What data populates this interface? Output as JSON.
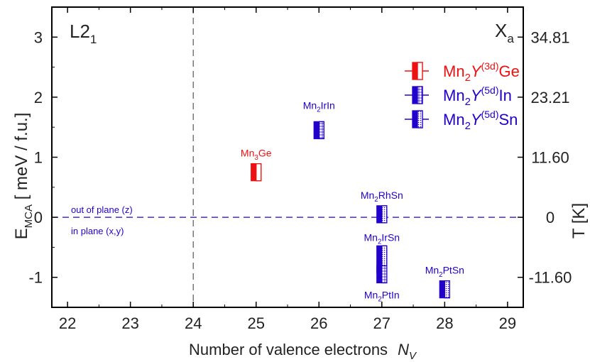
{
  "chart_data": {
    "type": "scatter",
    "title": "",
    "xlabel": "Number of valence electrons",
    "xlabel_symbol": "N",
    "xlabel_symbol_sub": "V",
    "ylabel": "E",
    "ylabel_sub": "MCA",
    "ylabel_unit": " [ meV / f.u.]",
    "y2label": "T [K]",
    "xlim": [
      21.75,
      29.25
    ],
    "ylim": [
      -1.5,
      3.5
    ],
    "xticks": [
      {
        "v": 22,
        "label": "22"
      },
      {
        "v": 23,
        "label": "23"
      },
      {
        "v": 24,
        "label": "24"
      },
      {
        "v": 25,
        "label": "25"
      },
      {
        "v": 26,
        "label": "26"
      },
      {
        "v": 27,
        "label": "27"
      },
      {
        "v": 28,
        "label": "28"
      },
      {
        "v": 29,
        "label": "29"
      }
    ],
    "yticks": [
      {
        "v": -1,
        "label": "-1"
      },
      {
        "v": 0,
        "label": "0"
      },
      {
        "v": 1,
        "label": "1"
      },
      {
        "v": 2,
        "label": "2"
      },
      {
        "v": 3,
        "label": "3"
      }
    ],
    "y2ticks": [
      {
        "v": -1,
        "label": "-11.60"
      },
      {
        "v": 0,
        "label": "0"
      },
      {
        "v": 1,
        "label": "11.60"
      },
      {
        "v": 2,
        "label": "23.21"
      },
      {
        "v": 3,
        "label": "34.81"
      }
    ],
    "vline_x": 24,
    "hline_y": 0,
    "region_labels": {
      "left": {
        "text": "L2",
        "sub": "1"
      },
      "right": {
        "text": "X",
        "sub": "a"
      }
    },
    "boundary_labels": {
      "above": "out of plane (z)",
      "below": "in plane (x,y)"
    },
    "legend": [
      {
        "name": "Mn2Y(3d)Ge",
        "color": "#ee1111",
        "fill": "half-right",
        "parts": {
          "a": "Mn",
          "a_sub": "2",
          "b": "Y",
          "b_sup": "(3d)",
          "c": "Ge"
        }
      },
      {
        "name": "Mn2Y(5d)In",
        "color": "#2200cc",
        "fill": "half-left-textured",
        "parts": {
          "a": "Mn",
          "a_sub": "2",
          "b": "Y",
          "b_sup": "(5d)",
          "c": "In"
        }
      },
      {
        "name": "Mn2Y(5d)Sn",
        "color": "#2200cc",
        "fill": "half-left-dotted",
        "parts": {
          "a": "Mn",
          "a_sub": "2",
          "b": "Y",
          "b_sup": "(5d)",
          "c": "Sn"
        }
      }
    ],
    "series": [
      {
        "name": "Mn3Ge",
        "x": 25,
        "y": 0.75,
        "color": "#ee1111",
        "style": "half-right",
        "label": {
          "a": "Mn",
          "sub": "3",
          "b": "Ge"
        },
        "label_pos": "above"
      },
      {
        "name": "Mn2IrIn",
        "x": 26,
        "y": 1.45,
        "color": "#2200cc",
        "style": "half-left-textured",
        "label": {
          "a": "Mn",
          "sub": "2",
          "b": "IrIn"
        },
        "label_pos": "above"
      },
      {
        "name": "Mn2RhSn",
        "x": 27,
        "y": 0.05,
        "color": "#2200cc",
        "style": "half-left-dotted",
        "label": {
          "a": "Mn",
          "sub": "2",
          "b": "RhSn"
        },
        "label_pos": "above"
      },
      {
        "name": "Mn2IrSn",
        "x": 27,
        "y": -0.7,
        "color": "#2200cc",
        "style": "half-left-dotted",
        "label": {
          "a": "Mn",
          "sub": "2",
          "b": "IrSn"
        },
        "label_pos": "above"
      },
      {
        "name": "Mn2PtIn",
        "x": 27,
        "y": -0.95,
        "color": "#2200cc",
        "style": "half-left-textured",
        "label": {
          "a": "Mn",
          "sub": "2",
          "b": "PtIn"
        },
        "label_pos": "below"
      },
      {
        "name": "Mn2PtSn",
        "x": 28,
        "y": -1.2,
        "color": "#2200cc",
        "style": "half-left-dotted",
        "label": {
          "a": "Mn",
          "sub": "2",
          "b": "PtSn"
        },
        "label_pos": "above"
      }
    ]
  }
}
